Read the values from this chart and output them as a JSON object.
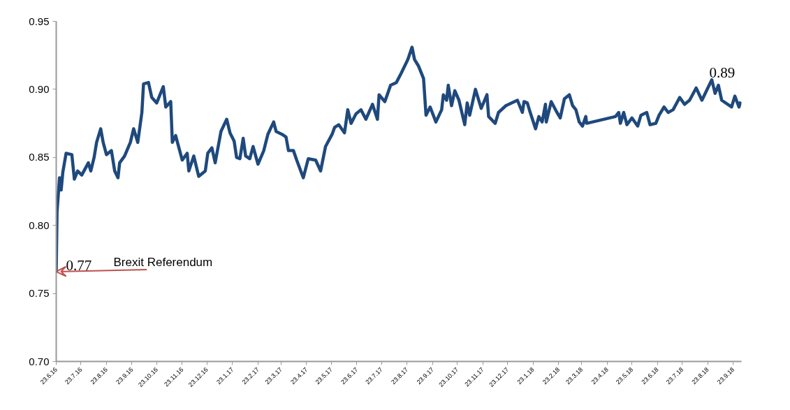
{
  "chart_data": {
    "type": "line",
    "x": [
      "2016-06-23",
      "2016-06-24",
      "2016-06-27",
      "2016-06-29",
      "2016-07-01",
      "2016-07-05",
      "2016-07-12",
      "2016-07-15",
      "2016-07-19",
      "2016-07-24",
      "2016-08-01",
      "2016-08-04",
      "2016-08-08",
      "2016-08-11",
      "2016-08-16",
      "2016-08-19",
      "2016-08-23",
      "2016-08-29",
      "2016-09-02",
      "2016-09-06",
      "2016-09-08",
      "2016-09-14",
      "2016-09-21",
      "2016-09-25",
      "2016-09-30",
      "2016-10-05",
      "2016-10-07",
      "2016-10-13",
      "2016-10-17",
      "2016-10-23",
      "2016-10-31",
      "2016-11-03",
      "2016-11-09",
      "2016-11-11",
      "2016-11-15",
      "2016-11-23",
      "2016-11-29",
      "2016-12-01",
      "2016-12-07",
      "2016-12-13",
      "2016-12-21",
      "2016-12-24",
      "2016-12-29",
      "2017-01-02",
      "2017-01-09",
      "2017-01-16",
      "2017-01-20",
      "2017-01-25",
      "2017-01-28",
      "2017-02-01",
      "2017-02-05",
      "2017-02-08",
      "2017-02-13",
      "2017-02-17",
      "2017-02-23",
      "2017-03-02",
      "2017-03-07",
      "2017-03-14",
      "2017-03-17",
      "2017-03-24",
      "2017-03-29",
      "2017-04-01",
      "2017-04-07",
      "2017-04-11",
      "2017-04-19",
      "2017-04-25",
      "2017-05-04",
      "2017-05-10",
      "2017-05-16",
      "2017-05-24",
      "2017-05-27",
      "2017-06-01",
      "2017-06-08",
      "2017-06-12",
      "2017-06-16",
      "2017-06-22",
      "2017-06-28",
      "2017-07-04",
      "2017-07-12",
      "2017-07-18",
      "2017-07-20",
      "2017-07-27",
      "2017-08-03",
      "2017-08-10",
      "2017-08-16",
      "2017-08-24",
      "2017-08-29",
      "2017-09-01",
      "2017-09-06",
      "2017-09-12",
      "2017-09-15",
      "2017-09-20",
      "2017-09-27",
      "2017-10-04",
      "2017-10-06",
      "2017-10-10",
      "2017-10-12",
      "2017-10-16",
      "2017-10-20",
      "2017-10-25",
      "2017-11-01",
      "2017-11-04",
      "2017-11-07",
      "2017-11-14",
      "2017-11-21",
      "2017-11-28",
      "2017-11-30",
      "2017-12-08",
      "2017-12-12",
      "2017-12-21",
      "2018-01-04",
      "2018-01-10",
      "2018-01-12",
      "2018-01-16",
      "2018-01-19",
      "2018-01-26",
      "2018-01-30",
      "2018-02-03",
      "2018-02-07",
      "2018-02-08",
      "2018-02-14",
      "2018-02-21",
      "2018-02-25",
      "2018-03-02",
      "2018-03-08",
      "2018-03-12",
      "2018-03-16",
      "2018-03-20",
      "2018-03-24",
      "2018-03-28",
      "2018-03-29",
      "2018-05-03",
      "2018-05-07",
      "2018-05-09",
      "2018-05-13",
      "2018-05-17",
      "2018-05-23",
      "2018-05-30",
      "2018-06-03",
      "2018-06-10",
      "2018-06-14",
      "2018-06-21",
      "2018-06-25",
      "2018-07-01",
      "2018-07-06",
      "2018-07-12",
      "2018-07-20",
      "2018-07-26",
      "2018-08-01",
      "2018-08-09",
      "2018-08-16",
      "2018-08-20",
      "2018-08-28",
      "2018-09-01",
      "2018-09-05",
      "2018-09-09",
      "2018-09-21",
      "2018-09-25",
      "2018-09-30",
      "2018-10-02"
    ],
    "series": [
      {
        "color": "#1f497d",
        "values": [
          0.766,
          0.81,
          0.835,
          0.826,
          0.839,
          0.853,
          0.852,
          0.834,
          0.84,
          0.837,
          0.846,
          0.84,
          0.85,
          0.861,
          0.871,
          0.861,
          0.852,
          0.855,
          0.84,
          0.835,
          0.846,
          0.851,
          0.861,
          0.871,
          0.861,
          0.883,
          0.904,
          0.905,
          0.894,
          0.89,
          0.902,
          0.887,
          0.891,
          0.861,
          0.866,
          0.848,
          0.853,
          0.84,
          0.851,
          0.836,
          0.84,
          0.853,
          0.857,
          0.846,
          0.869,
          0.878,
          0.868,
          0.862,
          0.85,
          0.849,
          0.864,
          0.851,
          0.849,
          0.858,
          0.845,
          0.855,
          0.867,
          0.876,
          0.869,
          0.867,
          0.865,
          0.855,
          0.855,
          0.848,
          0.835,
          0.849,
          0.848,
          0.84,
          0.858,
          0.867,
          0.872,
          0.874,
          0.868,
          0.885,
          0.875,
          0.882,
          0.885,
          0.878,
          0.889,
          0.878,
          0.896,
          0.891,
          0.903,
          0.905,
          0.912,
          0.922,
          0.931,
          0.922,
          0.917,
          0.908,
          0.881,
          0.887,
          0.876,
          0.885,
          0.896,
          0.892,
          0.903,
          0.888,
          0.899,
          0.892,
          0.874,
          0.89,
          0.881,
          0.9,
          0.886,
          0.896,
          0.88,
          0.875,
          0.883,
          0.888,
          0.892,
          0.883,
          0.891,
          0.89,
          0.884,
          0.871,
          0.88,
          0.876,
          0.889,
          0.876,
          0.891,
          0.883,
          0.879,
          0.893,
          0.896,
          0.888,
          0.885,
          0.876,
          0.873,
          0.88,
          0.875,
          0.88,
          0.883,
          0.875,
          0.883,
          0.874,
          0.879,
          0.873,
          0.881,
          0.883,
          0.874,
          0.875,
          0.881,
          0.887,
          0.883,
          0.885,
          0.894,
          0.889,
          0.892,
          0.901,
          0.892,
          0.897,
          0.907,
          0.897,
          0.903,
          0.892,
          0.887,
          0.895,
          0.887,
          0.891
        ],
        "value_labels": [
          "0.77",
          null,
          null,
          null,
          null,
          null,
          null,
          null,
          null,
          null,
          null,
          null,
          null,
          null,
          null,
          null,
          null,
          null,
          null,
          null,
          null,
          null,
          null,
          null,
          null,
          null,
          null,
          null,
          null,
          null,
          null,
          null,
          null,
          null,
          null,
          null,
          null,
          null,
          null,
          null,
          null,
          null,
          null,
          null,
          null,
          null,
          null,
          null,
          null,
          null,
          null,
          null,
          null,
          null,
          null,
          null,
          null,
          null,
          null,
          null,
          null,
          null,
          null,
          null,
          null,
          null,
          null,
          null,
          null,
          null,
          null,
          null,
          null,
          null,
          null,
          null,
          null,
          null,
          null,
          null,
          null,
          null,
          null,
          null,
          null,
          null,
          null,
          null,
          null,
          null,
          null,
          null,
          null,
          null,
          null,
          null,
          null,
          null,
          null,
          null,
          null,
          null,
          null,
          null,
          null,
          null,
          null,
          null,
          null,
          null,
          null,
          null,
          null,
          null,
          null,
          null,
          null,
          null,
          null,
          null,
          null,
          null,
          null,
          null,
          null,
          null,
          null,
          null,
          null,
          null,
          null,
          null,
          null,
          null,
          null,
          null,
          null,
          null,
          null,
          null,
          null,
          null,
          null,
          null,
          null,
          null,
          null,
          null,
          null,
          null,
          null,
          null,
          null,
          null,
          null,
          null,
          null,
          null,
          null,
          "0.89"
        ]
      }
    ],
    "annotations": [
      {
        "text": "Brexit Referendum",
        "x": "2016-06-23",
        "y": 0.766
      }
    ],
    "xlim": [
      "2016-06-23",
      "2018-10-03"
    ],
    "xticks": [
      {
        "value": "2016-06-23",
        "label": "23.6.16"
      },
      {
        "value": "2016-07-23",
        "label": "23.7.16"
      },
      {
        "value": "2016-08-23",
        "label": "23.8.16"
      },
      {
        "value": "2016-09-23",
        "label": "23.9.16"
      },
      {
        "value": "2016-10-23",
        "label": "23.10.16"
      },
      {
        "value": "2016-11-23",
        "label": "23.11.16"
      },
      {
        "value": "2016-12-23",
        "label": "23.12.16"
      },
      {
        "value": "2017-01-23",
        "label": "23.1.17"
      },
      {
        "value": "2017-02-23",
        "label": "23.2.17"
      },
      {
        "value": "2017-03-23",
        "label": "23.3.17"
      },
      {
        "value": "2017-04-23",
        "label": "23.4.17"
      },
      {
        "value": "2017-05-23",
        "label": "23.5.17"
      },
      {
        "value": "2017-06-23",
        "label": "23.6.17"
      },
      {
        "value": "2017-07-23",
        "label": "23.7.17"
      },
      {
        "value": "2017-08-23",
        "label": "23.8.17"
      },
      {
        "value": "2017-09-23",
        "label": "23.9.17"
      },
      {
        "value": "2017-10-23",
        "label": "23.10.17"
      },
      {
        "value": "2017-11-23",
        "label": "23.11.17"
      },
      {
        "value": "2017-12-23",
        "label": "23.12.17"
      },
      {
        "value": "2018-01-23",
        "label": "23.1.18"
      },
      {
        "value": "2018-02-23",
        "label": "23.2.18"
      },
      {
        "value": "2018-03-23",
        "label": "23.3.18"
      },
      {
        "value": "2018-04-23",
        "label": "23.4.18"
      },
      {
        "value": "2018-05-23",
        "label": "23.5.18"
      },
      {
        "value": "2018-06-23",
        "label": "23.6.18"
      },
      {
        "value": "2018-07-23",
        "label": "23.7.18"
      },
      {
        "value": "2018-08-23",
        "label": "23.8.18"
      },
      {
        "value": "2018-09-23",
        "label": "23.9.18"
      }
    ],
    "ylim": [
      0.7,
      0.95
    ],
    "yticks": [
      {
        "value": 0.7,
        "label": "0.70"
      },
      {
        "value": 0.75,
        "label": "0.75"
      },
      {
        "value": 0.8,
        "label": "0.80"
      },
      {
        "value": 0.85,
        "label": "0.85"
      },
      {
        "value": 0.9,
        "label": "0.90"
      },
      {
        "value": 0.95,
        "label": "0.95"
      }
    ],
    "grid": false,
    "marker": "none",
    "line_style": "solid"
  }
}
